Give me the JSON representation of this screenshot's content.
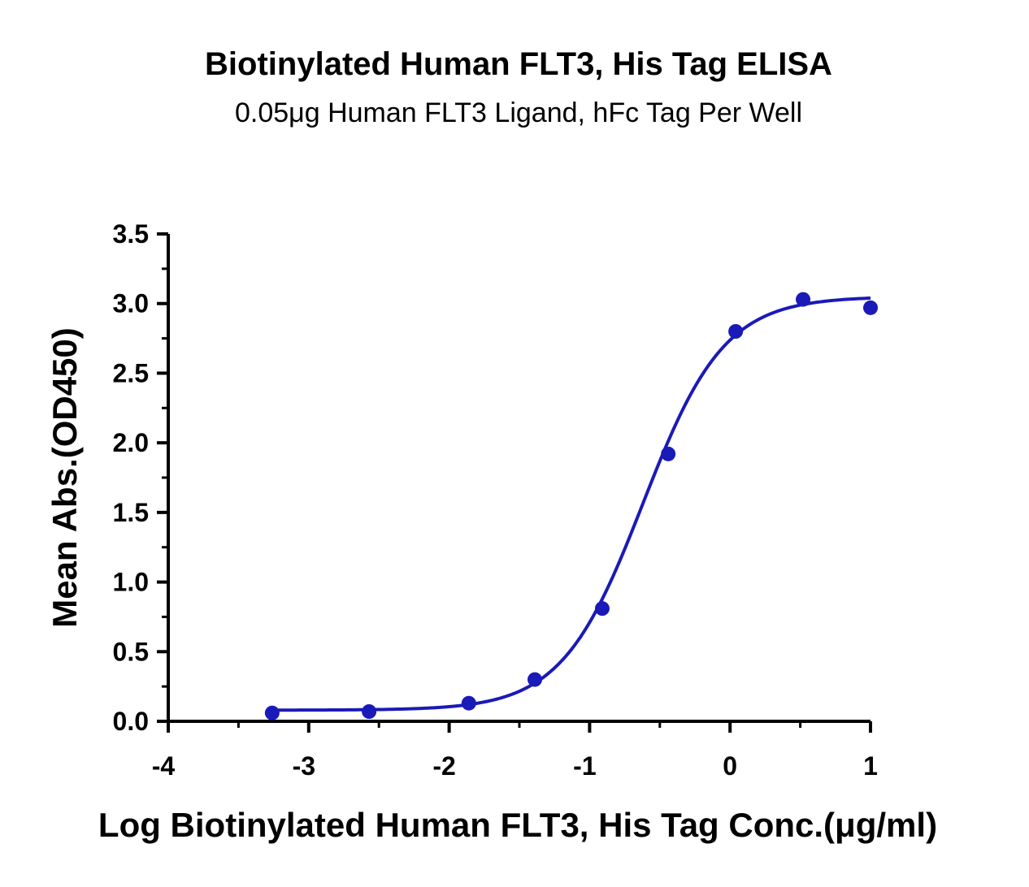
{
  "chart_data": {
    "type": "scatter",
    "title": "Biotinylated Human FLT3, His Tag ELISA",
    "subtitle": "0.05μg Human FLT3 Ligand,  hFc Tag Per Well",
    "xlabel": "Log Biotinylated Human FLT3, His Tag Conc.(μg/ml)",
    "ylabel": "Mean Abs.(OD450)",
    "xlim": [
      -4,
      1
    ],
    "ylim": [
      0,
      3.5
    ],
    "x_ticks": [
      "-4",
      "-3",
      "-2",
      "-1",
      "0",
      "1"
    ],
    "y_ticks": [
      "0.0",
      "0.5",
      "1.0",
      "1.5",
      "2.0",
      "2.5",
      "3.0",
      "3.5"
    ],
    "grid": false,
    "legend": "none",
    "series": [
      {
        "points": [
          {
            "x": -3.26,
            "y": 0.06
          },
          {
            "x": -2.57,
            "y": 0.07
          },
          {
            "x": -1.86,
            "y": 0.13
          },
          {
            "x": -1.39,
            "y": 0.3
          },
          {
            "x": -0.91,
            "y": 0.81
          },
          {
            "x": -0.44,
            "y": 1.92
          },
          {
            "x": 0.04,
            "y": 2.8
          },
          {
            "x": 0.52,
            "y": 3.03
          },
          {
            "x": 1.0,
            "y": 2.97
          }
        ],
        "fit": {
          "model": "4PL",
          "bottom": 0.08,
          "top": 3.05,
          "logEC50": -0.62,
          "hill": 1.5,
          "x_range": [
            -3.26,
            1.0
          ]
        }
      }
    ],
    "colors": {
      "series": "#1a1ab8",
      "axis": "#000000"
    }
  }
}
